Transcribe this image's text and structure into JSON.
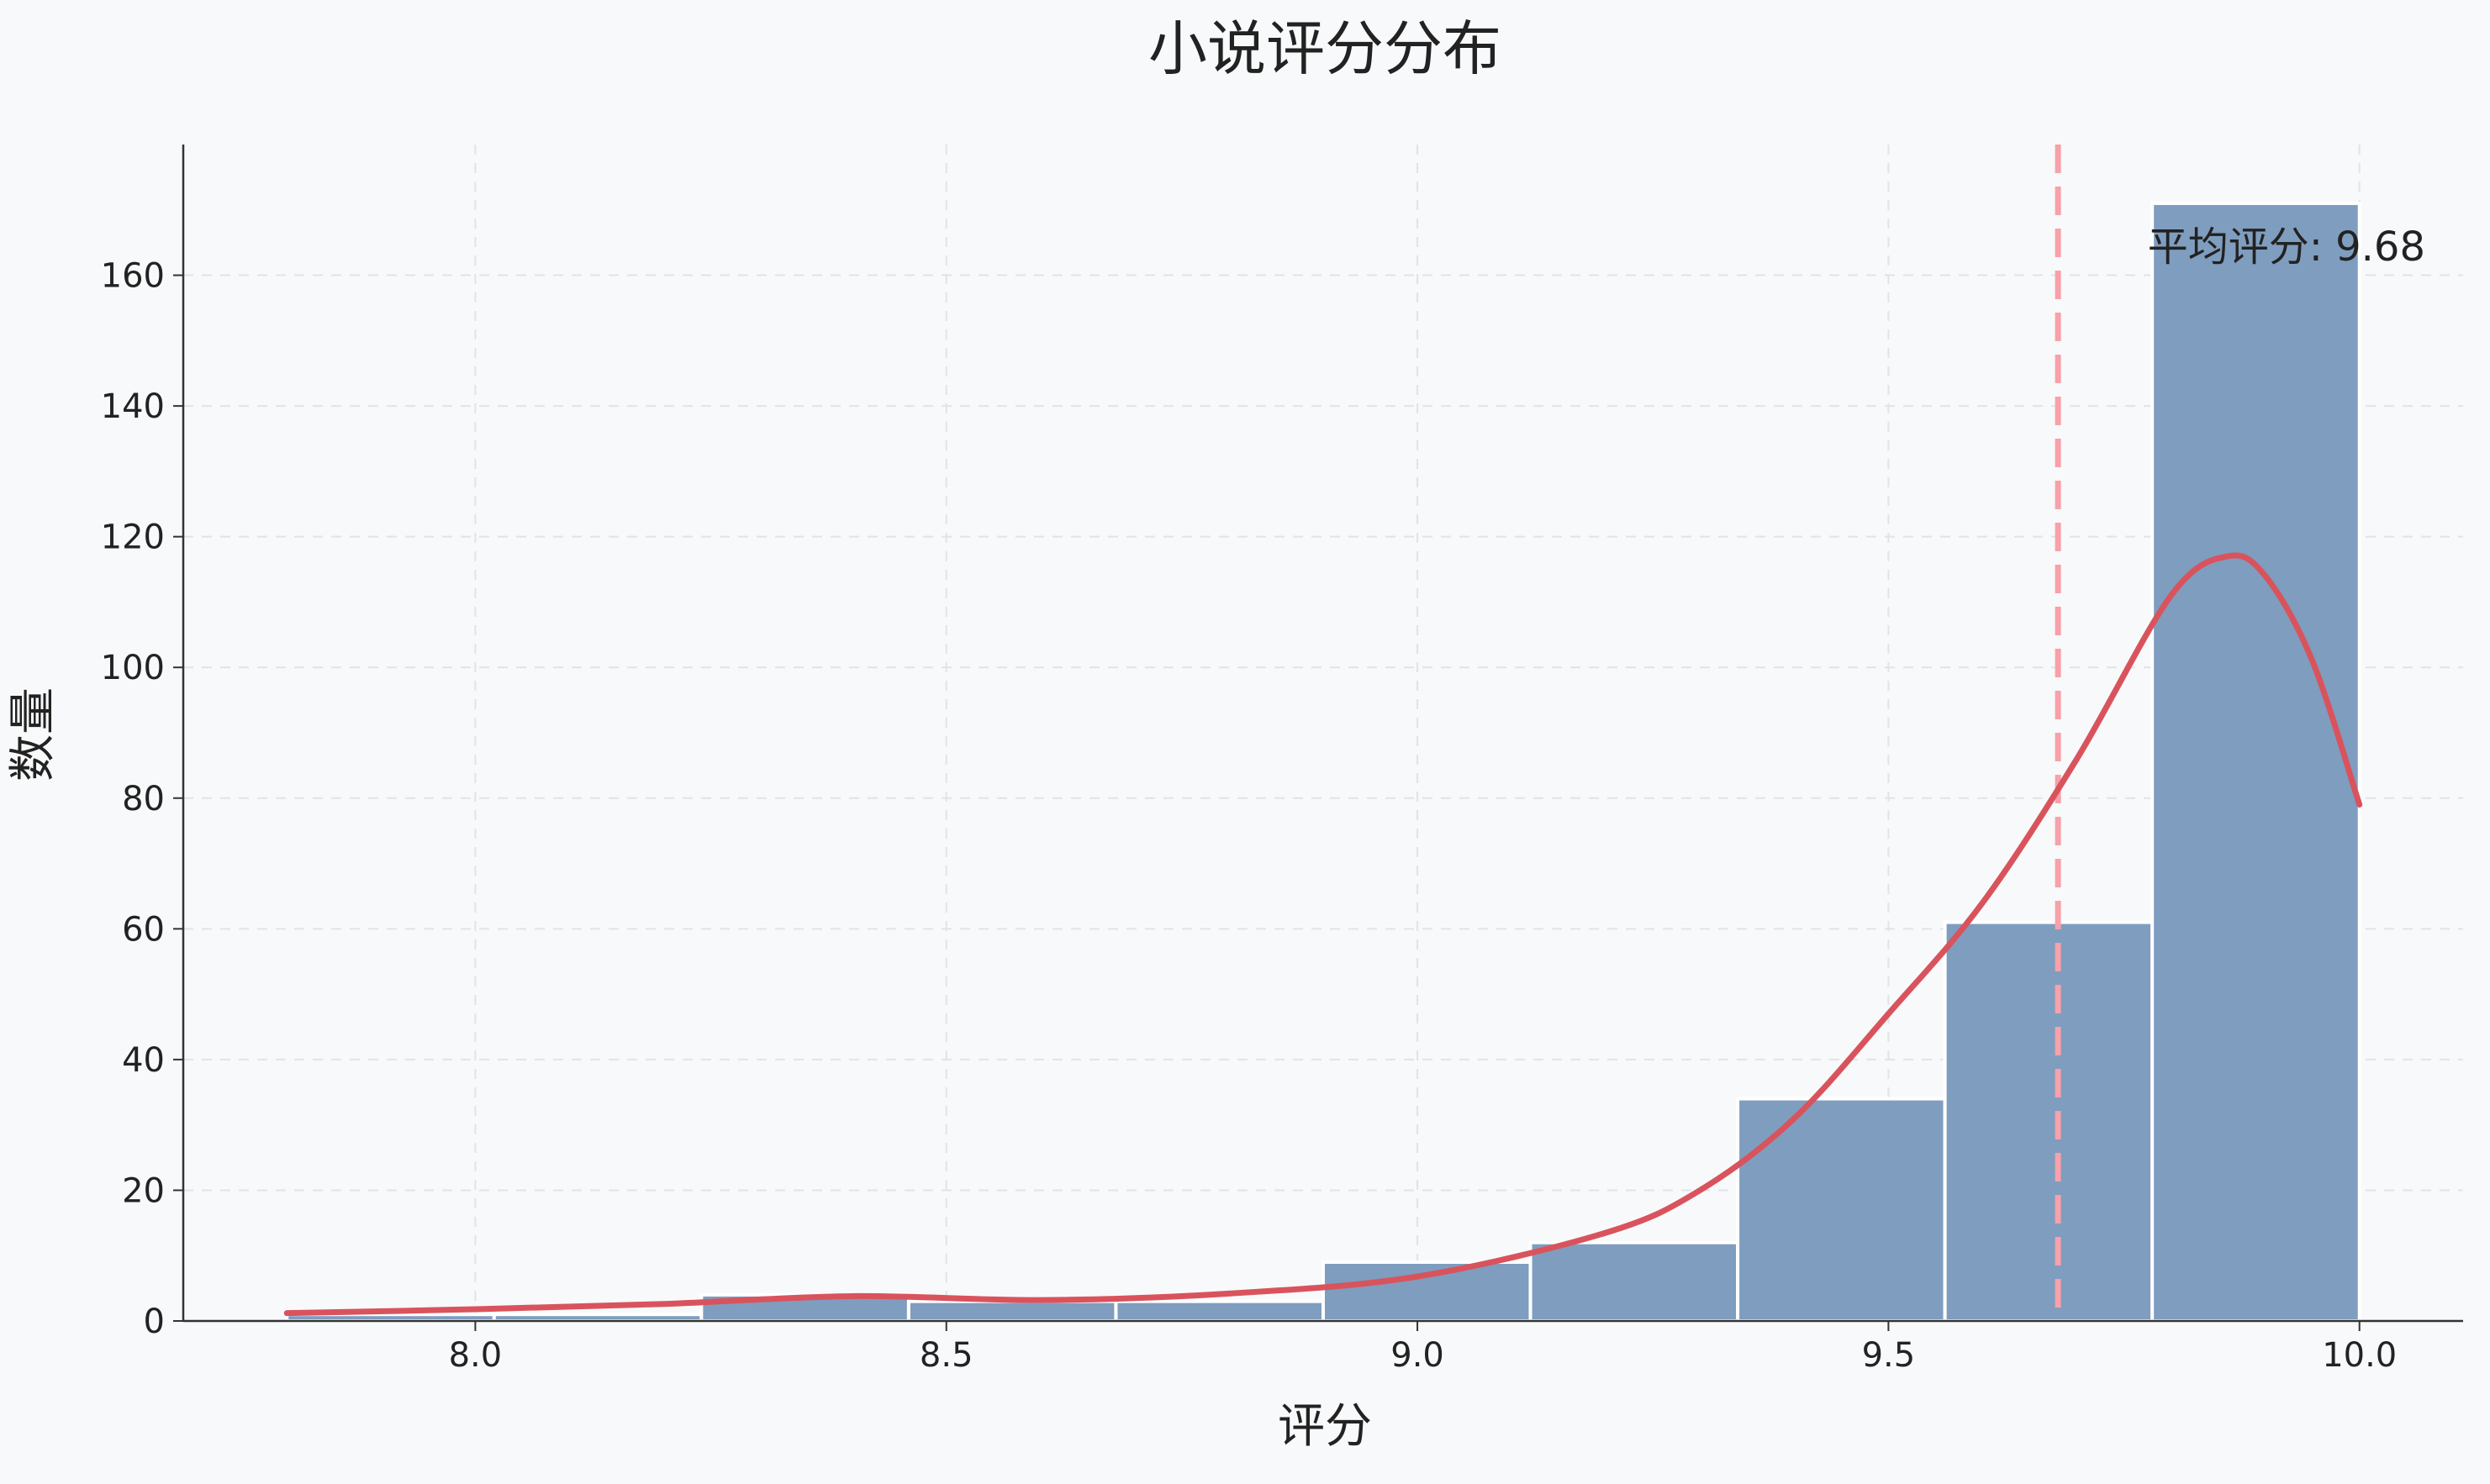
{
  "chart_data": {
    "type": "bar",
    "title": "小说评分分布",
    "xlabel": "评分",
    "ylabel": "数量",
    "xlim": [
      7.69,
      10.11
    ],
    "ylim": [
      0,
      180
    ],
    "x_ticks": [
      8.0,
      8.5,
      9.0,
      9.5,
      10.0
    ],
    "x_tick_labels": [
      "8.0",
      "8.5",
      "9.0",
      "9.5",
      "10.0"
    ],
    "y_ticks": [
      0,
      20,
      40,
      60,
      80,
      100,
      120,
      140,
      160
    ],
    "y_tick_labels": [
      "0",
      "20",
      "40",
      "60",
      "80",
      "100",
      "120",
      "140",
      "160"
    ],
    "grid": true,
    "bin_edges": [
      7.8,
      8.02,
      8.24,
      8.46,
      8.68,
      8.9,
      9.12,
      9.34,
      9.56,
      9.78,
      10.0
    ],
    "counts": [
      1,
      1,
      4,
      3,
      3,
      9,
      12,
      34,
      61,
      171
    ],
    "kde": {
      "x": [
        7.8,
        8.0,
        8.2,
        8.4,
        8.6,
        8.8,
        9.0,
        9.2,
        9.3,
        9.4,
        9.5,
        9.6,
        9.7,
        9.8,
        9.86,
        9.9,
        9.95,
        10.0
      ],
      "y": [
        1.2,
        1.8,
        2.6,
        3.8,
        3.2,
        4.2,
        6.8,
        13.5,
        20,
        31,
        47,
        64,
        86,
        111,
        117,
        114,
        101,
        79
      ]
    },
    "mean": {
      "value": 9.68,
      "label": "平均评分: 9.68"
    },
    "colors": {
      "bar": "#7f9dbf",
      "bar_edge": "#ffffff",
      "kde": "#d9535d",
      "mean_line": "#f7a1aa",
      "grid": "#e1e3e6",
      "axis": "#333333",
      "text": "#222222"
    }
  }
}
